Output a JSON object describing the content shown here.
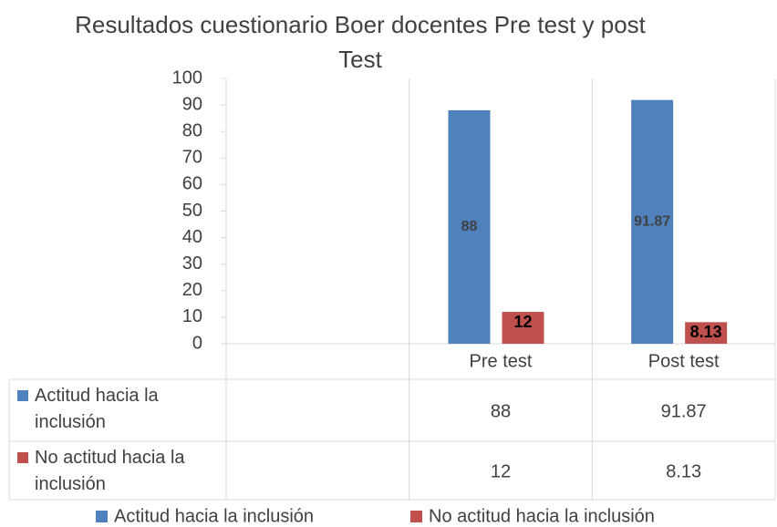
{
  "chart_data": {
    "type": "bar",
    "title": "Resultados cuestionario Boer docentes Pre test y post Test",
    "categories": [
      null,
      "Pre test",
      "Post test"
    ],
    "series": [
      {
        "name": "Actitud hacia la inclusión",
        "color": "#4f81bd",
        "values": [
          null,
          88,
          91.87
        ]
      },
      {
        "name": "No actitud hacia la inclusión",
        "color": "#c0504d",
        "values": [
          null,
          12,
          8.13
        ]
      }
    ],
    "ylim": [
      0,
      100
    ],
    "yticks": [
      0,
      10,
      20,
      30,
      40,
      50,
      60,
      70,
      80,
      90,
      100
    ],
    "grid": false,
    "legend": "bottom",
    "data_table": true
  }
}
